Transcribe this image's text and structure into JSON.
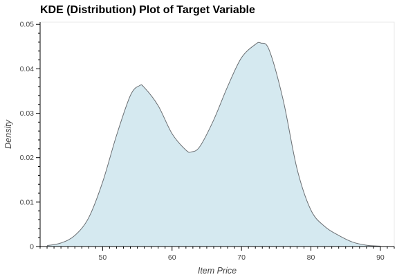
{
  "chart_data": {
    "type": "area",
    "title": "KDE (Distribution) Plot of Target Variable",
    "xlabel": "Item Price",
    "ylabel": "Density",
    "xlim": [
      41,
      92
    ],
    "ylim": [
      0,
      0.0505
    ],
    "x_ticks": [
      "50",
      "60",
      "70",
      "80",
      "90"
    ],
    "y_ticks": [
      "0",
      "0.01",
      "0.02",
      "0.03",
      "0.04",
      "0.05"
    ],
    "grid": false,
    "fill_color": "#d5e9f0",
    "line_color": "#6b6f73",
    "series": [
      {
        "x": [
          42,
          44,
          46,
          48,
          50,
          52,
          54,
          55.3,
          56,
          58,
          60,
          62,
          62.8,
          64,
          66,
          68,
          70,
          72,
          72.8,
          74,
          76,
          78,
          80,
          82,
          84,
          86,
          88,
          90
        ],
        "y": [
          0.0002,
          0.0008,
          0.0025,
          0.0065,
          0.0145,
          0.025,
          0.034,
          0.0362,
          0.0358,
          0.0317,
          0.0254,
          0.0217,
          0.0213,
          0.0225,
          0.0285,
          0.036,
          0.0425,
          0.0455,
          0.0458,
          0.0442,
          0.033,
          0.0175,
          0.0082,
          0.0045,
          0.0025,
          0.001,
          0.0003,
          0.0001
        ]
      }
    ]
  }
}
